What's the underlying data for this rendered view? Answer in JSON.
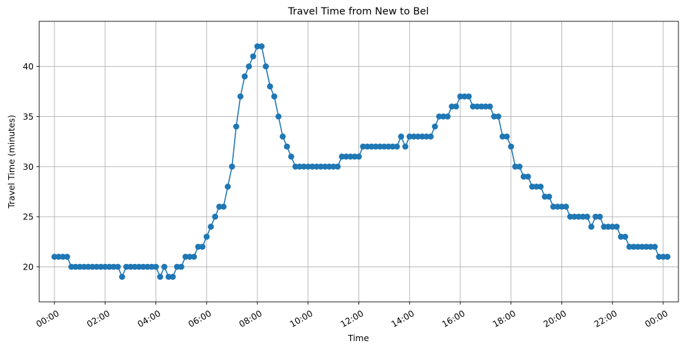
{
  "chart_data": {
    "type": "line",
    "title": "Travel Time from New to Bel",
    "xlabel": "Time",
    "ylabel": "Travel Time (minutes)",
    "xlim": [
      -0.6,
      24.6
    ],
    "ylim": [
      16.5,
      44.5
    ],
    "xtick_labels": [
      "00:00",
      "02:00",
      "04:00",
      "06:00",
      "08:00",
      "10:00",
      "12:00",
      "14:00",
      "16:00",
      "18:00",
      "20:00",
      "22:00",
      "00:00"
    ],
    "yticks": [
      20,
      25,
      30,
      35,
      40
    ],
    "grid": true,
    "marker": "circle",
    "color": "#1f77b4",
    "series": [
      {
        "x_step_minutes": 10,
        "values": [
          21,
          21,
          21,
          21,
          20,
          20,
          20,
          20,
          20,
          20,
          20,
          20,
          20,
          20,
          20,
          20,
          19,
          20,
          20,
          20,
          20,
          20,
          20,
          20,
          20,
          19,
          20,
          19,
          19,
          20,
          20,
          21,
          21,
          21,
          22,
          22,
          23,
          24,
          25,
          26,
          26,
          28,
          30,
          34,
          37,
          39,
          40,
          41,
          42,
          42,
          40,
          38,
          37,
          35,
          33,
          32,
          31,
          30,
          30,
          30,
          30,
          30,
          30,
          30,
          30,
          30,
          30,
          30,
          31,
          31,
          31,
          31,
          31,
          32,
          32,
          32,
          32,
          32,
          32,
          32,
          32,
          32,
          33,
          32,
          33,
          33,
          33,
          33,
          33,
          33,
          34,
          35,
          35,
          35,
          36,
          36,
          37,
          37,
          37,
          36,
          36,
          36,
          36,
          36,
          35,
          35,
          33,
          33,
          32,
          30,
          30,
          29,
          29,
          28,
          28,
          28,
          27,
          27,
          26,
          26,
          26,
          26,
          25,
          25,
          25,
          25,
          25,
          24,
          25,
          25,
          24,
          24,
          24,
          24,
          23,
          23,
          22,
          22,
          22,
          22,
          22,
          22,
          22,
          21,
          21,
          21
        ]
      }
    ]
  }
}
